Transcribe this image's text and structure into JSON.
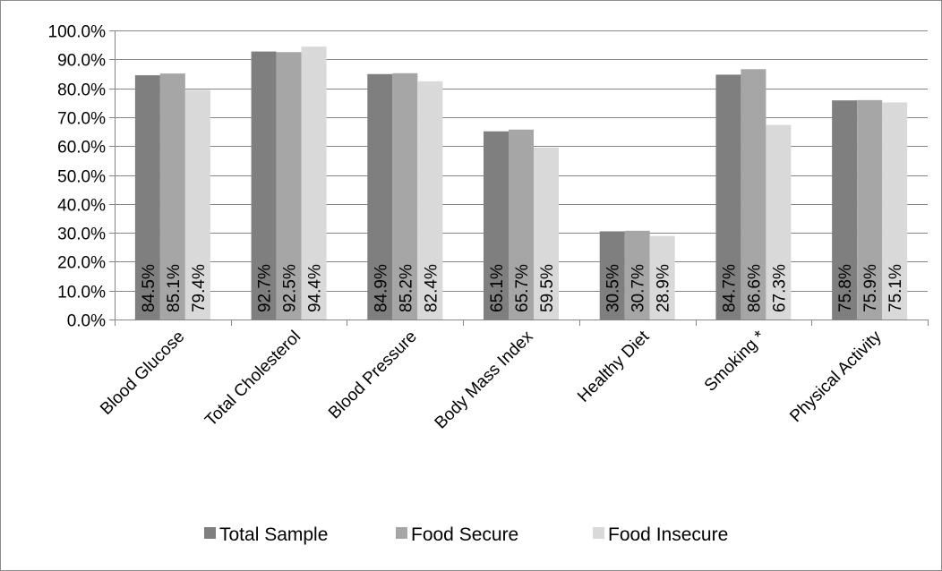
{
  "chart_data": {
    "type": "bar",
    "title": "",
    "xlabel": "",
    "ylabel": "",
    "ylim": [
      0,
      100
    ],
    "y_tick_step": 10,
    "y_tick_format": "percent_1dp",
    "grid": "horizontal",
    "legend_position": "bottom",
    "categories": [
      "Blood Glucose",
      "Total Cholesterol",
      "Blood Pressure",
      "Body Mass Index",
      "Healthy Diet",
      "Smoking *",
      "Physical Activity"
    ],
    "series": [
      {
        "name": "Total Sample",
        "color": "#7f7f7f",
        "values": [
          84.5,
          92.7,
          84.9,
          65.1,
          30.5,
          84.7,
          75.8
        ],
        "labels": [
          "84.5%",
          "92.7%",
          "84.9%",
          "65.1%",
          "30.5%",
          "84.7%",
          "75.8%"
        ]
      },
      {
        "name": "Food Secure",
        "color": "#a6a6a6",
        "values": [
          85.1,
          92.5,
          85.2,
          65.7,
          30.7,
          86.6,
          75.9
        ],
        "labels": [
          "85.1%",
          "92.5%",
          "85.2%",
          "65.7%",
          "30.7%",
          "86.6%",
          "75.9%"
        ]
      },
      {
        "name": "Food Insecure",
        "color": "#d9d9d9",
        "values": [
          79.4,
          94.4,
          82.4,
          59.5,
          28.9,
          67.3,
          75.1
        ],
        "labels": [
          "79.4%",
          "94.4%",
          "82.4%",
          "59.5%",
          "28.9%",
          "67.3%",
          "75.1%"
        ]
      }
    ],
    "colors": {
      "gridline": "#868686",
      "axis": "#868686",
      "frame": "#8c8c8c",
      "text": "#000000"
    }
  }
}
